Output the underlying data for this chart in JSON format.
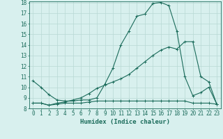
{
  "title": "",
  "xlabel": "Humidex (Indice chaleur)",
  "ylabel": "",
  "x_values": [
    0,
    1,
    2,
    3,
    4,
    5,
    6,
    7,
    8,
    9,
    10,
    11,
    12,
    13,
    14,
    15,
    16,
    17,
    18,
    19,
    20,
    21,
    22,
    23
  ],
  "line1": [
    10.6,
    10.0,
    9.3,
    8.8,
    8.7,
    8.7,
    8.8,
    8.8,
    9.0,
    10.3,
    11.8,
    14.0,
    15.3,
    16.7,
    16.9,
    17.9,
    18.0,
    17.7,
    15.3,
    11.0,
    9.2,
    9.5,
    10.0,
    8.4
  ],
  "line2": [
    8.5,
    8.5,
    8.3,
    8.5,
    8.6,
    8.8,
    9.0,
    9.4,
    9.9,
    10.2,
    10.5,
    10.8,
    11.2,
    11.8,
    12.4,
    13.0,
    13.5,
    13.8,
    13.6,
    14.3,
    14.3,
    11.0,
    10.5,
    8.4
  ],
  "line3": [
    8.5,
    8.5,
    8.3,
    8.4,
    8.5,
    8.5,
    8.5,
    8.6,
    8.7,
    8.7,
    8.7,
    8.7,
    8.7,
    8.7,
    8.7,
    8.7,
    8.7,
    8.7,
    8.7,
    8.7,
    8.5,
    8.5,
    8.5,
    8.4
  ],
  "line_color": "#1a6b5a",
  "marker": "+",
  "background_color": "#d8f0ee",
  "grid_color": "#b8d8d4",
  "ylim": [
    8,
    18
  ],
  "xlim": [
    -0.5,
    23.5
  ],
  "yticks": [
    8,
    9,
    10,
    11,
    12,
    13,
    14,
    15,
    16,
    17,
    18
  ],
  "xticks": [
    0,
    1,
    2,
    3,
    4,
    5,
    6,
    7,
    8,
    9,
    10,
    11,
    12,
    13,
    14,
    15,
    16,
    17,
    18,
    19,
    20,
    21,
    22,
    23
  ],
  "tick_fontsize": 5.5,
  "xlabel_fontsize": 6.5
}
